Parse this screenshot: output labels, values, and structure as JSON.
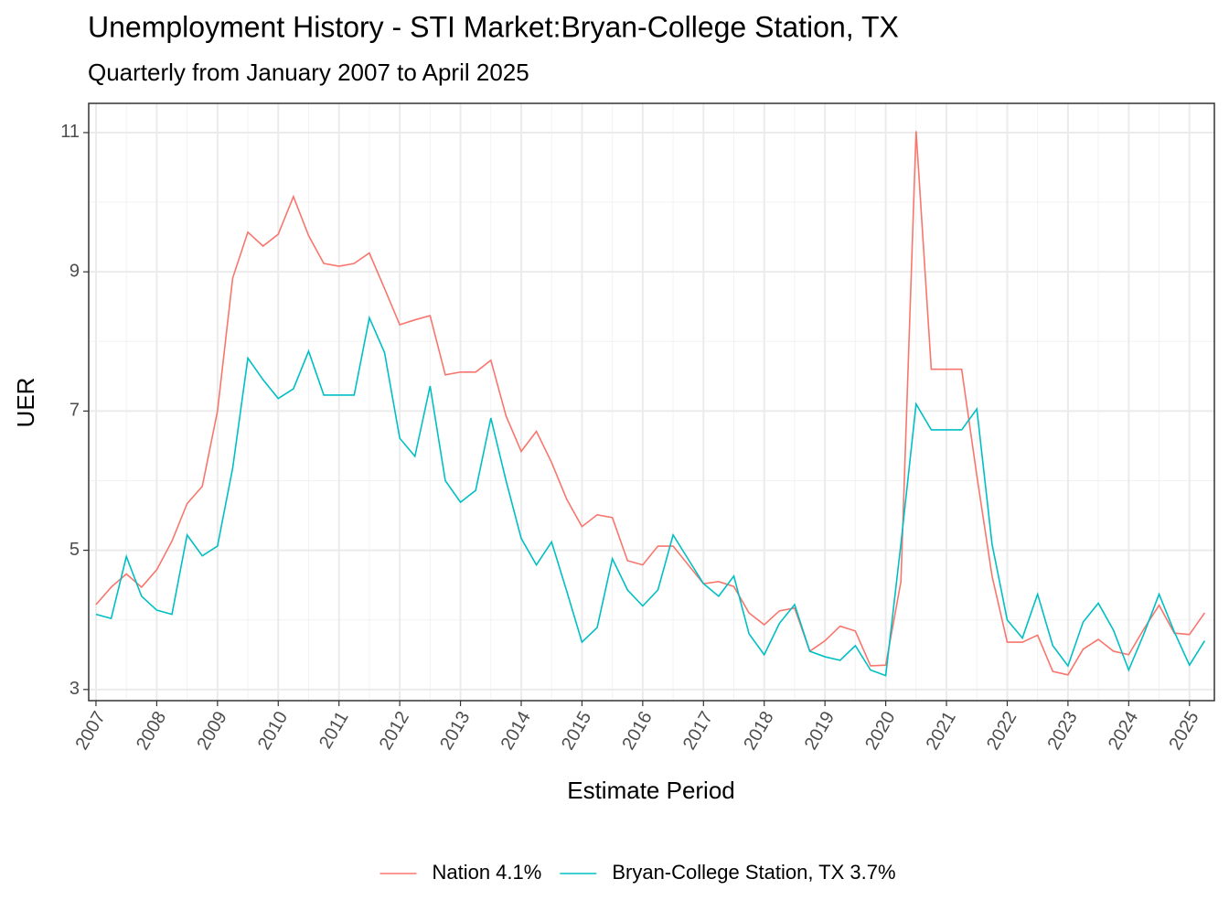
{
  "chart_data": {
    "type": "line",
    "title": "Unemployment History - STI Market:Bryan-College Station, TX",
    "subtitle": "Quarterly from January 2007 to April 2025",
    "x_label": "Estimate Period",
    "y_label": "UER",
    "x": [
      2007,
      2007.25,
      2007.5,
      2007.75,
      2008,
      2008.25,
      2008.5,
      2008.75,
      2009,
      2009.25,
      2009.5,
      2009.75,
      2010,
      2010.25,
      2010.5,
      2010.75,
      2011,
      2011.25,
      2011.5,
      2011.75,
      2012,
      2012.25,
      2012.5,
      2012.75,
      2013,
      2013.25,
      2013.5,
      2013.75,
      2014,
      2014.25,
      2014.5,
      2014.75,
      2015,
      2015.25,
      2015.5,
      2015.75,
      2016,
      2016.25,
      2016.5,
      2016.75,
      2017,
      2017.25,
      2017.5,
      2017.75,
      2018,
      2018.25,
      2018.5,
      2018.75,
      2019,
      2019.25,
      2019.5,
      2019.75,
      2020,
      2020.25,
      2020.5,
      2020.75,
      2021,
      2021.25,
      2021.5,
      2021.75,
      2022,
      2022.25,
      2022.5,
      2022.75,
      2023,
      2023.25,
      2023.5,
      2023.75,
      2024,
      2024.25,
      2024.5,
      2024.75,
      2025,
      2025.25
    ],
    "series": [
      {
        "name": "Nation 4.1%",
        "color": "#F8766D",
        "values": [
          4.22,
          4.47,
          4.66,
          4.47,
          4.72,
          5.13,
          5.67,
          5.92,
          7.0,
          8.91,
          9.57,
          9.37,
          9.54,
          10.08,
          9.52,
          9.12,
          9.08,
          9.12,
          9.27,
          8.76,
          8.24,
          8.31,
          8.37,
          7.52,
          7.56,
          7.56,
          7.73,
          6.93,
          6.42,
          6.71,
          6.26,
          5.73,
          5.34,
          5.51,
          5.47,
          4.85,
          4.79,
          5.06,
          5.06,
          4.79,
          4.52,
          4.55,
          4.48,
          4.1,
          3.93,
          4.13,
          4.17,
          3.55,
          3.7,
          3.91,
          3.84,
          3.34,
          3.35,
          4.55,
          11.02,
          7.6,
          7.6,
          7.6,
          6.07,
          4.63,
          3.68,
          3.68,
          3.78,
          3.26,
          3.21,
          3.58,
          3.72,
          3.55,
          3.5,
          3.87,
          4.21,
          3.81,
          3.79,
          4.1
        ]
      },
      {
        "name": "Bryan-College Station, TX 3.7%",
        "color": "#00BFC4",
        "values": [
          4.08,
          4.02,
          4.91,
          4.34,
          4.14,
          4.08,
          5.22,
          4.92,
          5.06,
          6.18,
          7.76,
          7.45,
          7.18,
          7.32,
          7.86,
          7.23,
          7.23,
          7.23,
          8.34,
          7.84,
          6.61,
          6.35,
          7.36,
          6.0,
          5.69,
          5.86,
          6.9,
          6.0,
          5.17,
          4.79,
          5.12,
          4.41,
          3.68,
          3.89,
          4.88,
          4.43,
          4.2,
          4.43,
          5.22,
          4.87,
          4.52,
          4.34,
          4.63,
          3.8,
          3.5,
          3.95,
          4.22,
          3.55,
          3.47,
          3.42,
          3.63,
          3.28,
          3.2,
          5.09,
          7.1,
          6.73,
          6.73,
          6.73,
          7.03,
          5.09,
          4.0,
          3.74,
          4.37,
          3.63,
          3.34,
          3.97,
          4.24,
          3.85,
          3.28,
          3.8,
          4.37,
          3.83,
          3.35,
          3.7
        ]
      }
    ],
    "xlim": [
      2006.88,
      2025.41
    ],
    "xticks": [
      2007,
      2008,
      2009,
      2010,
      2011,
      2012,
      2013,
      2014,
      2015,
      2016,
      2017,
      2018,
      2019,
      2020,
      2021,
      2022,
      2023,
      2024,
      2025
    ],
    "ylim": [
      2.84,
      11.42
    ],
    "yticks": [
      3,
      5,
      7,
      9,
      11
    ],
    "grid": true,
    "legend": "bottom"
  }
}
